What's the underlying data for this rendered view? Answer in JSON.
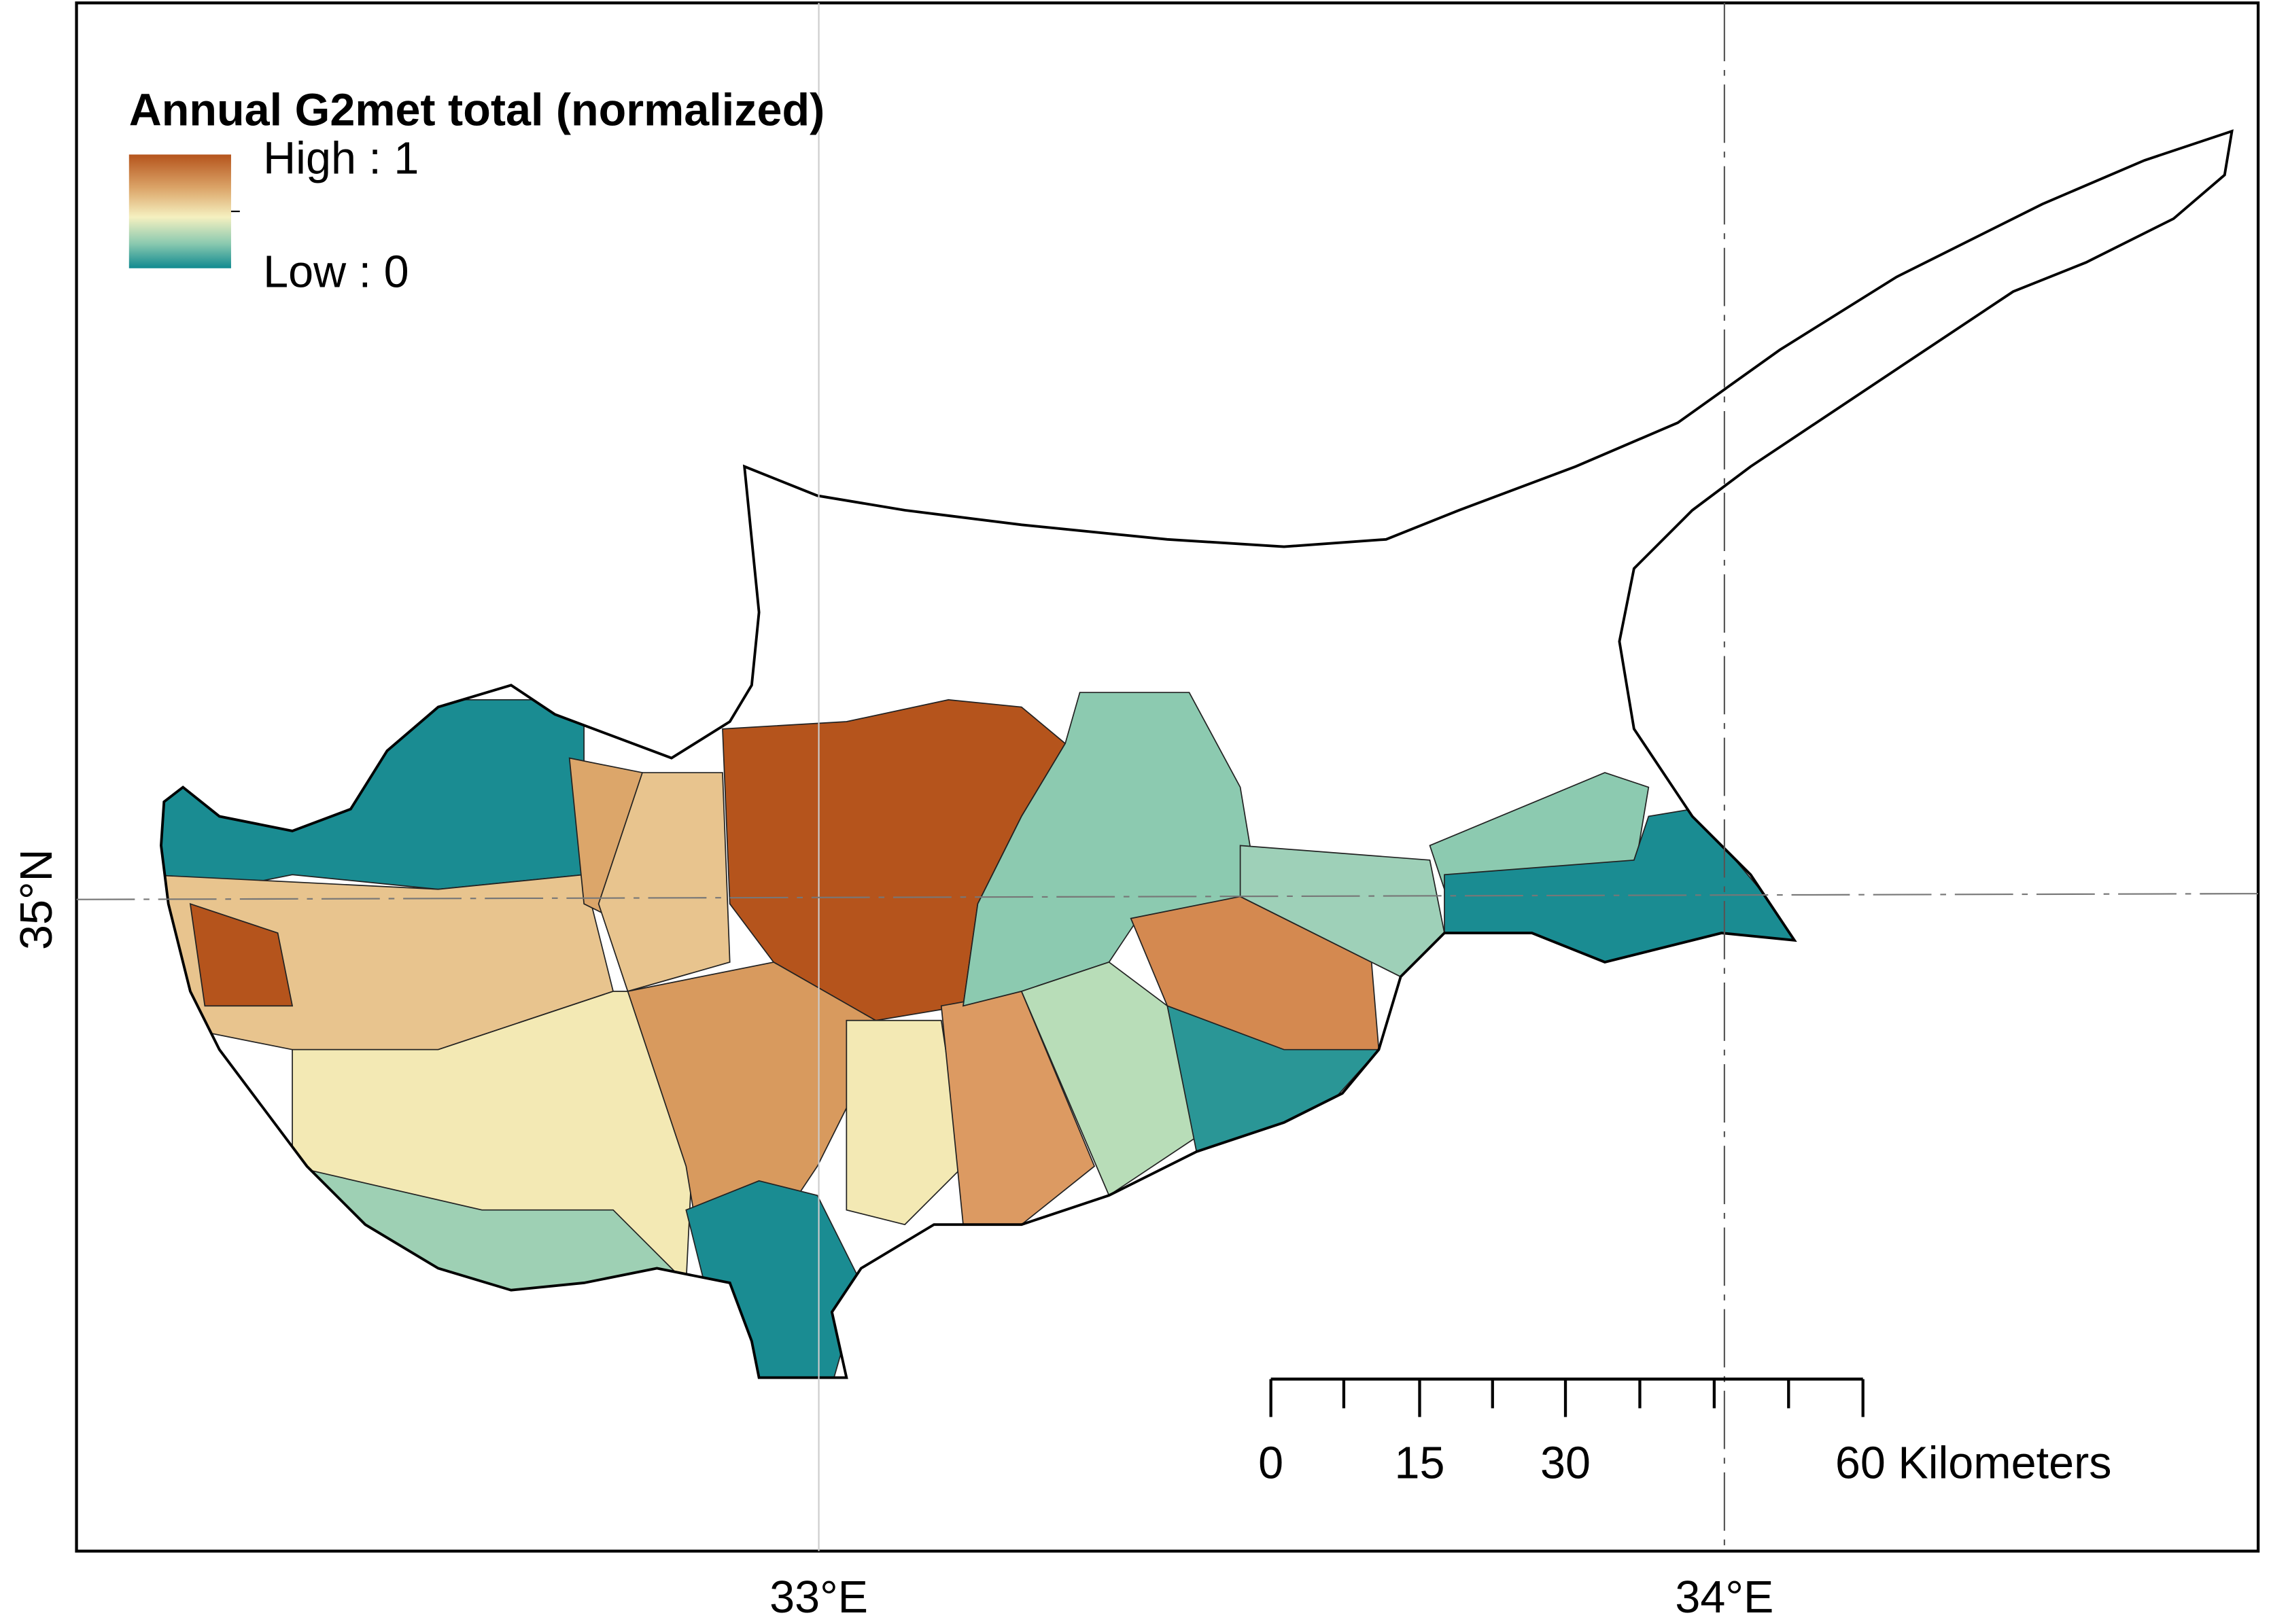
{
  "legend": {
    "title": "Annual G2met total (normalized)",
    "high": "High : 1",
    "low": "Low : 0"
  },
  "axes": {
    "x_labels": [
      "33°E",
      "34°E"
    ],
    "y_labels": [
      "35°N"
    ]
  },
  "scale_bar": {
    "labels": [
      "0",
      "15",
      "30",
      "60 Kilometers"
    ]
  }
}
